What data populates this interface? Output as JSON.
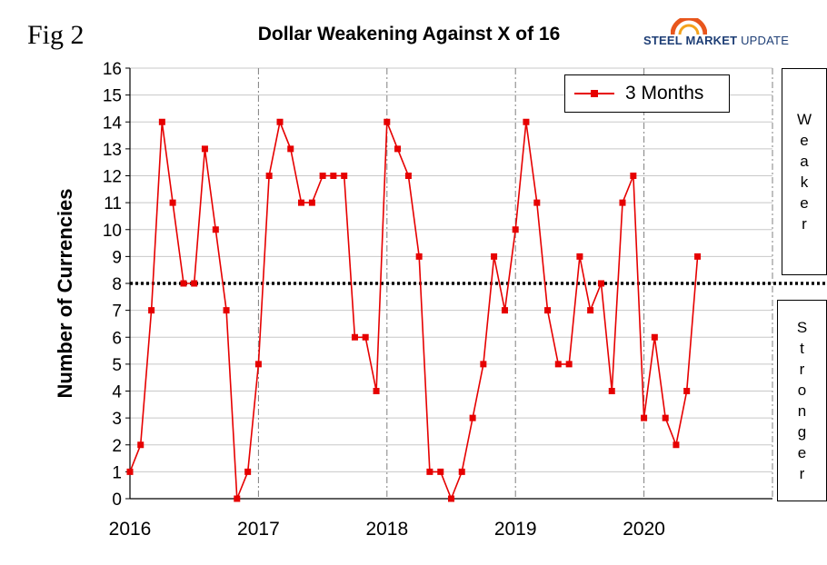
{
  "figure_label": "Fig 2",
  "logo": {
    "brand_bold": "STEEL MARKET",
    "brand_light": "UPDATE"
  },
  "side_labels": {
    "weaker": "Weaker",
    "stronger": "Stronger"
  },
  "colors": {
    "series": "#e60000",
    "grid": "#c8c8c8",
    "year_line": "#808080",
    "threshold": "#000000"
  },
  "chart_data": {
    "type": "line",
    "title": "Dollar Weakening Against X of 16",
    "xlabel": "",
    "ylabel": "Number of Currencies",
    "ylim": [
      0,
      16
    ],
    "yticks": [
      0,
      1,
      2,
      3,
      4,
      5,
      6,
      7,
      8,
      9,
      10,
      11,
      12,
      13,
      14,
      15,
      16
    ],
    "x_start": 2016.0,
    "x_end": 2021.0,
    "x_ticks": [
      2016,
      2017,
      2018,
      2019,
      2020
    ],
    "x_tick_labels": [
      "2016",
      "2017",
      "2018",
      "2019",
      "2020"
    ],
    "threshold": 8,
    "legend": "top-right",
    "series": [
      {
        "name": "3 Months",
        "x": [
          2016.0,
          2016.083,
          2016.167,
          2016.25,
          2016.333,
          2016.417,
          2016.5,
          2016.583,
          2016.667,
          2016.75,
          2016.833,
          2016.917,
          2017.0,
          2017.083,
          2017.167,
          2017.25,
          2017.333,
          2017.417,
          2017.5,
          2017.583,
          2017.667,
          2017.75,
          2017.833,
          2017.917,
          2018.0,
          2018.083,
          2018.167,
          2018.25,
          2018.333,
          2018.417,
          2018.5,
          2018.583,
          2018.667,
          2018.75,
          2018.833,
          2018.917,
          2019.0,
          2019.083,
          2019.167,
          2019.25,
          2019.333,
          2019.417,
          2019.5,
          2019.583,
          2019.667,
          2019.75,
          2019.833,
          2019.917,
          2020.0,
          2020.083,
          2020.167,
          2020.25,
          2020.333,
          2020.417
        ],
        "values": [
          1,
          2,
          7,
          14,
          11,
          8,
          8,
          13,
          10,
          7,
          0,
          1,
          5,
          12,
          14,
          13,
          11,
          11,
          12,
          12,
          12,
          6,
          6,
          4,
          14,
          13,
          12,
          9,
          1,
          1,
          0,
          1,
          3,
          5,
          9,
          7,
          10,
          14,
          11,
          7,
          5,
          5,
          9,
          7,
          8,
          4,
          11,
          12,
          3,
          6,
          3,
          2,
          4,
          9
        ]
      }
    ]
  }
}
